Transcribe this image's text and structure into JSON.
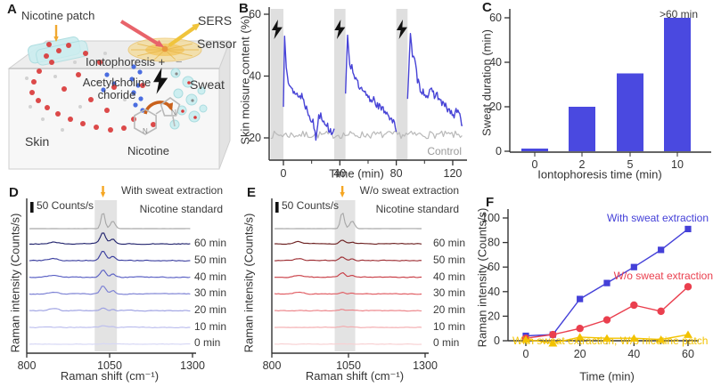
{
  "figure_bg": "#ffffff",
  "panel_a": {
    "label": "A",
    "annotations": {
      "nicotine_patch": "Nicotine patch",
      "sers": "SERS",
      "sensor": "Sensor",
      "iontophoresis": "Iontophoresis +",
      "electrode_minus": "−",
      "acetylcholine_1": "Acetylcholine",
      "acetylcholine_2": "choride",
      "sweat": "Sweat",
      "skin": "Skin",
      "nicotine": "Nicotine",
      "n_pyridine": "N",
      "n_pyrrolidine": "N"
    },
    "colors": {
      "patch": "#cdeef0",
      "patch_edge": "#aadcdf",
      "sensor": "#f6d98a",
      "sensor_edge": "#e8b84b",
      "laser_arrow": "#e8636a",
      "sers_arrow": "#f0c43c",
      "label_arrow": "#f0a830",
      "red_dot": "#d93a3a",
      "blue_dot": "#4a6de0",
      "droplet": "#cdeef0",
      "swirl": "#c9611c",
      "bolt": "#111111",
      "molecule": "#b9b9b9",
      "box_top": "#ededed",
      "box_front": "#f7f7f7",
      "box_side": "#e3e3e3",
      "box_edge": "#cfcfcf"
    }
  },
  "chart_data": [
    {
      "id": "B",
      "panel_label": "B",
      "type": "line",
      "xlabel": "Time (min)",
      "ylabel": "Skin moisure content (%)",
      "xticks": [
        0,
        40,
        80,
        120
      ],
      "xticks_minor": [
        20,
        60,
        100
      ],
      "yticks": [
        20,
        40,
        60
      ],
      "xlim": [
        -10,
        128
      ],
      "ylim": [
        17,
        61
      ],
      "stim_bands": [
        [
          -9,
          0
        ],
        [
          36,
          44
        ],
        [
          80,
          88
        ]
      ],
      "band_color": "#d9d9d9",
      "control_label": "Control",
      "series": [
        {
          "name": "Iontophoresis",
          "color": "#4743d6",
          "segments": [
            [
              [
                0,
                30
              ],
              [
                0.8,
                53
              ],
              [
                2,
                44
              ],
              [
                3.5,
                39
              ],
              [
                5,
                37
              ],
              [
                7,
                34
              ],
              [
                9,
                35
              ],
              [
                11,
                33
              ],
              [
                13,
                34
              ],
              [
                15,
                31
              ],
              [
                17,
                29
              ],
              [
                19,
                27
              ],
              [
                21,
                25
              ],
              [
                23,
                20
              ],
              [
                25,
                27
              ],
              [
                26.5,
                28
              ],
              [
                28,
                26
              ],
              [
                30,
                25
              ],
              [
                32,
                23
              ],
              [
                34,
                22
              ],
              [
                36,
                23
              ]
            ],
            [
              [
                44,
                34
              ],
              [
                45.5,
                53
              ],
              [
                47,
                44
              ],
              [
                48.5,
                43
              ],
              [
                50,
                41
              ],
              [
                52,
                38
              ],
              [
                54,
                36
              ],
              [
                56,
                35
              ],
              [
                58,
                34
              ],
              [
                60,
                33
              ],
              [
                62,
                32
              ],
              [
                64,
                33
              ],
              [
                66,
                31
              ],
              [
                68,
                30
              ],
              [
                70,
                29
              ],
              [
                72,
                29
              ],
              [
                74,
                28
              ],
              [
                76,
                26
              ],
              [
                78,
                25
              ],
              [
                80,
                22
              ]
            ],
            [
              [
                88,
                33
              ],
              [
                90,
                54
              ],
              [
                91.5,
                46
              ],
              [
                93,
                45
              ],
              [
                95,
                39
              ],
              [
                97,
                36
              ],
              [
                99,
                35
              ],
              [
                101,
                34
              ],
              [
                103,
                34
              ],
              [
                105,
                35
              ],
              [
                107,
                34
              ],
              [
                109,
                34
              ],
              [
                111,
                32
              ],
              [
                113,
                31
              ],
              [
                115,
                30
              ],
              [
                117,
                29
              ],
              [
                119,
                28
              ],
              [
                121,
                27
              ],
              [
                123,
                29
              ],
              [
                125,
                27
              ],
              [
                127,
                24
              ]
            ]
          ]
        },
        {
          "name": "Control",
          "color": "#b9b9b9",
          "flat": 21,
          "noise": 1.2,
          "range": [
            -9,
            127
          ]
        }
      ]
    },
    {
      "id": "C",
      "panel_label": "C",
      "type": "bar",
      "xlabel": "Iontophoresis time (min)",
      "ylabel": "Sweat duration (min)",
      "categories": [
        "0",
        "2",
        "5",
        "10"
      ],
      "values": [
        1,
        20,
        35,
        60
      ],
      "yticks": [
        0,
        20,
        40,
        60
      ],
      "ylim": [
        0,
        64
      ],
      "bar_color": "#4a49e0",
      "annotation": ">60 min"
    },
    {
      "id": "D",
      "panel_label": "D",
      "type": "spectra",
      "title": "With sweat extraction",
      "standard_label": "Nicotine standard",
      "scalebar_label": "50 Counts/s",
      "xlabel": "Raman shift (cm⁻¹)",
      "ylabel": "Raman intensity (Counts/s)",
      "xticks": [
        800,
        1050,
        1300
      ],
      "xlim": [
        800,
        1300
      ],
      "band": [
        1005,
        1072
      ],
      "arrow_x": 1030,
      "arrow_color": "#f5a623",
      "band_color": "#dcdcdc",
      "traces": [
        {
          "label": "Nicotine standard",
          "color": "#a8a8a8",
          "peak": 19,
          "sharp": true,
          "noise": 0.2
        },
        {
          "label": "60 min",
          "color": "#23256e",
          "peak": 13,
          "noise": 0.9
        },
        {
          "label": "50 min",
          "color": "#3c40a0",
          "peak": 11,
          "noise": 0.9
        },
        {
          "label": "40 min",
          "color": "#5a60c4",
          "peak": 8,
          "noise": 0.9
        },
        {
          "label": "30 min",
          "color": "#7b80d4",
          "peak": 9,
          "noise": 0.8
        },
        {
          "label": "20 min",
          "color": "#9da1e2",
          "peak": 3,
          "noise": 0.8
        },
        {
          "label": "10 min",
          "color": "#bcbeee",
          "peak": 1.5,
          "noise": 0.7
        },
        {
          "label": "0 min",
          "color": "#d6d7f5",
          "peak": 0.6,
          "noise": 0.5
        }
      ]
    },
    {
      "id": "E",
      "panel_label": "E",
      "type": "spectra",
      "title": "W/o sweat extraction",
      "standard_label": "Nicotine standard",
      "scalebar_label": "50 Counts/s",
      "xlabel": "Raman shift (cm⁻¹)",
      "ylabel": "Raman intensity (Counts/s)",
      "xticks": [
        800,
        1050,
        1300
      ],
      "xlim": [
        800,
        1300
      ],
      "band": [
        1005,
        1072
      ],
      "arrow_x": 1030,
      "arrow_color": "#f5a623",
      "band_color": "#dcdcdc",
      "traces": [
        {
          "label": "Nicotine standard",
          "color": "#a8a8a8",
          "peak": 19,
          "sharp": true,
          "noise": 0.2
        },
        {
          "label": "60 min",
          "color": "#6e2323",
          "peak": 4,
          "noise": 0.8
        },
        {
          "label": "50 min",
          "color": "#9e2f34",
          "peak": 4,
          "noise": 0.8
        },
        {
          "label": "40 min",
          "color": "#c93e46",
          "peak": 5,
          "noise": 0.8
        },
        {
          "label": "30 min",
          "color": "#e05a60",
          "peak": 2,
          "noise": 0.7
        },
        {
          "label": "20 min",
          "color": "#ec8287",
          "peak": 1.5,
          "noise": 0.7
        },
        {
          "label": "10 min",
          "color": "#f3abae",
          "peak": 1.2,
          "noise": 0.6
        },
        {
          "label": "0 min",
          "color": "#f8d0d2",
          "peak": 0.5,
          "noise": 0.5
        }
      ]
    },
    {
      "id": "F",
      "panel_label": "F",
      "type": "scatter-line",
      "xlabel": "Time (min)",
      "ylabel": "Raman intensity (Counts/s)",
      "x": [
        0,
        10,
        20,
        30,
        40,
        50,
        60
      ],
      "xticks": [
        0,
        20,
        40,
        60
      ],
      "xticks_minor": [
        10,
        30,
        50
      ],
      "yticks": [
        0,
        20,
        40,
        60,
        80,
        100
      ],
      "ylim": [
        -8,
        104
      ],
      "series": [
        {
          "name": "With sweat extraction",
          "color": "#4440d8",
          "marker": "square",
          "values": [
            4,
            5,
            34,
            47,
            60,
            74,
            91
          ]
        },
        {
          "name": "W/o sweat extraction",
          "color": "#ea3f4e",
          "marker": "circle",
          "values": [
            2,
            5,
            10,
            17,
            29,
            24,
            44
          ]
        },
        {
          "name": "With sweat extraction, W/o nicotine patch",
          "color": "#f2c200",
          "marker": "triangle",
          "values": [
            1,
            -2,
            3,
            2,
            2,
            1,
            5
          ]
        }
      ]
    }
  ]
}
